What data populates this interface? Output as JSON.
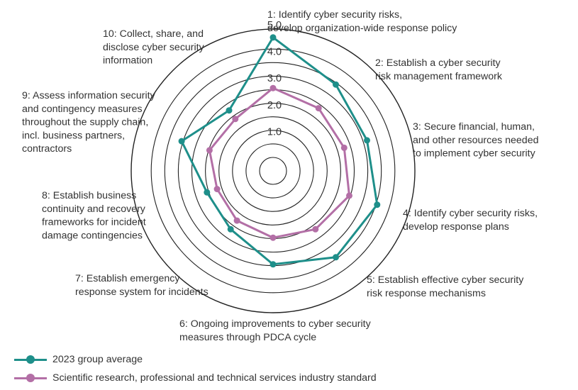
{
  "chart_data": {
    "type": "radar",
    "title": "",
    "scale": {
      "min": 0,
      "max": 5,
      "rings": 9,
      "ticks": [
        "1.0",
        "2.0",
        "3.0",
        "4.0",
        "5.0"
      ]
    },
    "categories": [
      [
        "1: Identify cyber security risks,",
        "develop organization-wide response policy"
      ],
      [
        "2: Establish a cyber security",
        "risk management framework"
      ],
      [
        "3: Secure financial, human,",
        "and other resources needed",
        "to implement cyber security"
      ],
      [
        "4: Identify cyber security risks,",
        "develop response plans"
      ],
      [
        "5: Establish effective cyber security",
        "risk response mechanisms"
      ],
      [
        "6: Ongoing improvements to cyber security",
        "measures through PDCA cycle"
      ],
      [
        "7: Establish emergency",
        "response system for incidents"
      ],
      [
        "8: Establish business",
        "continuity and recovery",
        "frameworks for incident",
        "damage contingencies"
      ],
      [
        "9: Assess information security",
        "and contingency measures",
        "throughout the supply chain,",
        "incl. business partners,",
        "contractors"
      ],
      [
        "10: Collect, share, and",
        "disclose cyber security",
        "information"
      ]
    ],
    "series": [
      {
        "name": "2023 group average",
        "color": "#1e8f8a",
        "values": [
          4.5,
          3.5,
          3.2,
          3.6,
          3.5,
          3.0,
          2.2,
          2.1,
          3.1,
          2.3
        ]
      },
      {
        "name": "Scientific research, professional and technical services industry standard",
        "color": "#b36fa6",
        "values": [
          2.6,
          2.4,
          2.3,
          2.5,
          2.2,
          2.0,
          1.8,
          1.7,
          2.0,
          1.9
        ]
      }
    ]
  }
}
